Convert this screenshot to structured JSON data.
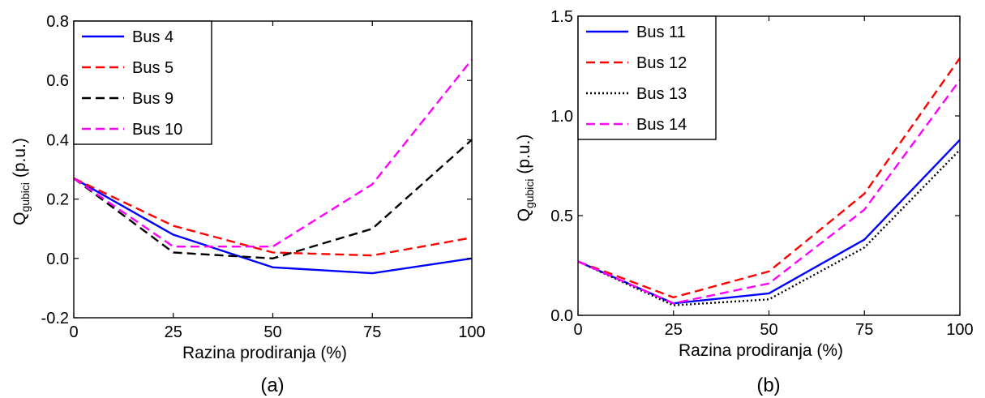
{
  "chart_data": [
    {
      "type": "line",
      "panel_label": "(a)",
      "xlabel": "Razina prodiranja (%)",
      "ylabel_main": "Q",
      "ylabel_sub": "gubici",
      "ylabel_unit": " (p.u.)",
      "xlim": [
        0,
        100
      ],
      "ylim": [
        -0.2,
        0.8
      ],
      "x_ticks": [
        0,
        25,
        50,
        75,
        100
      ],
      "y_ticks": [
        -0.2,
        0.0,
        0.2,
        0.4,
        0.6,
        0.8
      ],
      "y_tick_labels": [
        "-0.2",
        "0.0",
        "0.2",
        "0.4",
        "0.6",
        "0.8"
      ],
      "legend_position": "top-left",
      "grid": false,
      "x": [
        0,
        25,
        50,
        75,
        100
      ],
      "series": [
        {
          "name": "Bus 4",
          "values": [
            0.27,
            0.08,
            -0.03,
            -0.05,
            0.0
          ],
          "color": "#0000ff",
          "dash": "solid"
        },
        {
          "name": "Bus 5",
          "values": [
            0.27,
            0.11,
            0.02,
            0.01,
            0.07
          ],
          "color": "#ff0000",
          "dash": "dashed"
        },
        {
          "name": "Bus 9",
          "values": [
            0.27,
            0.02,
            0.0,
            0.1,
            0.4
          ],
          "color": "#000000",
          "dash": "dashed"
        },
        {
          "name": "Bus 10",
          "values": [
            0.27,
            0.04,
            0.04,
            0.25,
            0.67
          ],
          "color": "#ff00ff",
          "dash": "dashed"
        }
      ]
    },
    {
      "type": "line",
      "panel_label": "(b)",
      "xlabel": "Razina prodiranja (%)",
      "ylabel_main": "Q",
      "ylabel_sub": "gubici",
      "ylabel_unit": " (p.u.)",
      "xlim": [
        0,
        100
      ],
      "ylim": [
        0,
        1.5
      ],
      "x_ticks": [
        0,
        25,
        50,
        75,
        100
      ],
      "y_ticks": [
        0,
        0.5,
        1.0,
        1.5
      ],
      "y_tick_labels": [
        "0.0",
        "0.5",
        "1.0",
        "1.5"
      ],
      "legend_position": "top-left",
      "grid": false,
      "x": [
        0,
        25,
        50,
        75,
        100
      ],
      "series": [
        {
          "name": "Bus 11",
          "values": [
            0.27,
            0.06,
            0.11,
            0.38,
            0.88
          ],
          "color": "#0000ff",
          "dash": "solid"
        },
        {
          "name": "Bus 12",
          "values": [
            0.27,
            0.09,
            0.22,
            0.61,
            1.29
          ],
          "color": "#ff0000",
          "dash": "dashed"
        },
        {
          "name": "Bus 13",
          "values": [
            0.27,
            0.05,
            0.08,
            0.34,
            0.83
          ],
          "color": "#000000",
          "dash": "dotted"
        },
        {
          "name": "Bus 14",
          "values": [
            0.27,
            0.06,
            0.16,
            0.53,
            1.18
          ],
          "color": "#ff00ff",
          "dash": "dashed"
        }
      ]
    }
  ]
}
